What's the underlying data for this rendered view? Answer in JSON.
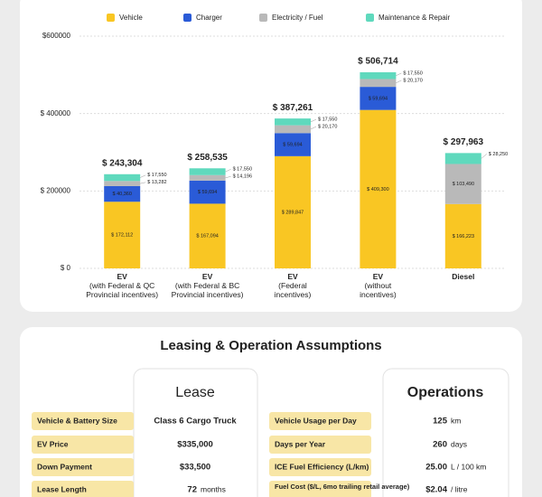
{
  "chart_data": {
    "type": "stacked-bar",
    "categories": [
      "EV\n(with Federal & QC\nProvincial incentives)",
      "EV\n(with Federal & BC\nProvincial incentives)",
      "EV\n(Federal\nincentives)",
      "EV\n(without\nincentives)",
      "Diesel"
    ],
    "series": [
      {
        "name": "Vehicle",
        "color": "#f9c623",
        "values": [
          172112,
          167094,
          289847,
          409300,
          166223
        ],
        "value_labels": [
          "$ 172,112",
          "$ 167,094",
          "$ 289,847",
          "$ 409,300",
          "$ 166,223"
        ]
      },
      {
        "name": "Charger",
        "color": "#2a5bd7",
        "values": [
          40360,
          59694,
          59694,
          59694,
          null
        ],
        "value_labels": [
          "$ 40,360",
          "$ 59,694",
          "$ 59,694",
          "$ 59,694",
          null
        ]
      },
      {
        "name": "Electricity / Fuel",
        "color": "#b9b9b9",
        "values": [
          13282,
          14196,
          20170,
          20170,
          103490
        ],
        "value_labels": [
          "$ 13,282",
          "$ 14,196",
          "$ 20,170",
          "$ 20,170",
          "$ 103,490"
        ]
      },
      {
        "name": "Maintenance & Repair",
        "color": "#5fd9bd",
        "values": [
          17550,
          17550,
          17550,
          17550,
          28250
        ],
        "value_labels": [
          "$ 17,550",
          "$ 17,550",
          "$ 17,550",
          "$ 17,550",
          "$ 28,250"
        ]
      }
    ],
    "totals": [
      243304,
      258535,
      387261,
      506714,
      297963
    ],
    "total_labels": [
      "$ 243,304",
      "$ 258,535",
      "$ 387,261",
      "$ 506,714",
      "$ 297,963"
    ],
    "ylim": [
      0,
      600000
    ],
    "yticks": [
      {
        "value": 0,
        "label": "$ 0"
      },
      {
        "value": 200000,
        "label": "$ 200000"
      },
      {
        "value": 400000,
        "label": "$ 400000"
      },
      {
        "value": 600000,
        "label": "$600000"
      }
    ],
    "grid": true,
    "legend": "top"
  },
  "assumptions": {
    "title": "Leasing & Operation Assumptions",
    "lease": {
      "title": "Lease",
      "rows": [
        {
          "label": "Vehicle & Battery Size",
          "value": "Class 6 Cargo Truck"
        },
        {
          "label": "EV Price",
          "value": "$335,000"
        },
        {
          "label": "Down Payment",
          "value": "$33,500"
        },
        {
          "label": "Lease Length",
          "value": "72",
          "unit": "months"
        }
      ]
    },
    "operations": {
      "title": "Operations",
      "rows": [
        {
          "label": "Vehicle Usage per Day",
          "value": "125",
          "unit": "km"
        },
        {
          "label": "Days per Year",
          "value": "260",
          "unit": "days"
        },
        {
          "label": "ICE Fuel Efficiency (L/km)",
          "value": "25.00",
          "unit": "L / 100 km"
        },
        {
          "label": "Fuel Cost ($/L, 6mo trailing retail average)",
          "value": "$2.04",
          "unit": "/ litre"
        }
      ]
    }
  }
}
